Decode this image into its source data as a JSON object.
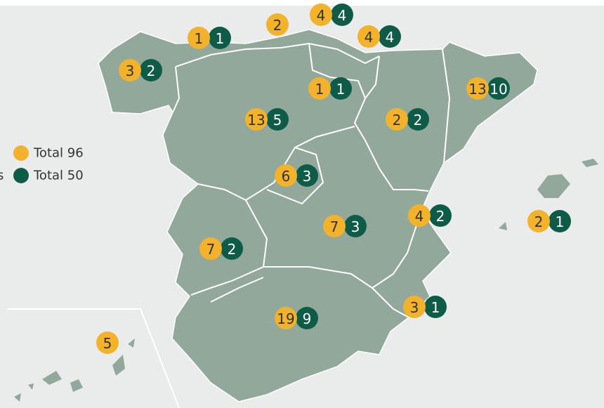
{
  "legend": {
    "cut_label": "s",
    "items": [
      {
        "label": "Total 96"
      },
      {
        "label": "Total 50"
      }
    ]
  },
  "markers": [
    {
      "orange": "3",
      "green": "2"
    },
    {
      "orange": "1",
      "green": "1"
    },
    {
      "orange": "2"
    },
    {
      "orange": "4",
      "green": "4"
    },
    {
      "orange": "4",
      "green": "4"
    },
    {
      "orange": "1",
      "green": "1"
    },
    {
      "orange": "2",
      "green": "2"
    },
    {
      "orange": "13",
      "green": "10"
    },
    {
      "orange": "13",
      "green": "5"
    },
    {
      "orange": "6",
      "green": "3"
    },
    {
      "orange": "7",
      "green": "3"
    },
    {
      "orange": "4",
      "green": "2"
    },
    {
      "orange": "2",
      "green": "1"
    },
    {
      "orange": "7",
      "green": "2"
    },
    {
      "orange": "3",
      "green": "1"
    },
    {
      "orange": "19",
      "green": "9"
    },
    {
      "orange": "5"
    }
  ]
}
